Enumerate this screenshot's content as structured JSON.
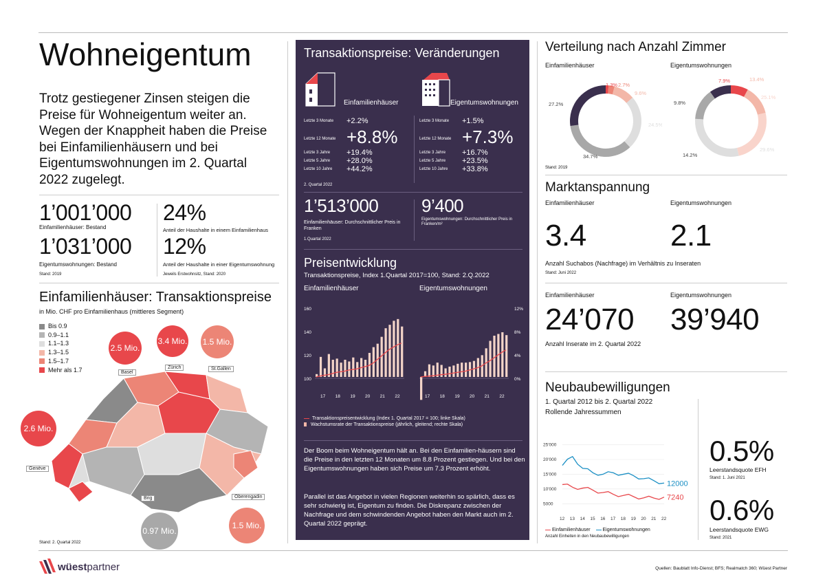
{
  "title": "Wohneigentum",
  "intro": "Trotz gestiegener Zinsen steigen die Preise für Wohneigentum weiter an. Wegen der Knappheit haben die Preise bei Einfamilienhäusern und bei Eigentumswohnungen im 2. Quartal 2022 zugelegt.",
  "stock": {
    "efh_value": "1’001’000",
    "efh_label": "Einfamilienhäuser: Bestand",
    "etw_value": "1’031’000",
    "etw_label": "Eigentumswohnungen: Bestand",
    "stand": "Stand: 2019",
    "efh_share": "24%",
    "efh_share_label": "Anteil der Haushalte in einem Einfamilienhaus",
    "etw_share": "12%",
    "etw_share_label": "Anteil der Haushalte in einer Eigentumswohnung",
    "share_stand": "Jeweils Erstwohnsitz, Stand: 2020"
  },
  "map": {
    "title": "Einfamilienhäuser: Transaktionspreise",
    "subtitle": "in Mio. CHF pro Einfamilienhaus (mittleres Segment)",
    "legend": [
      {
        "label": "Bis 0.9",
        "color": "#8a8a8a"
      },
      {
        "label": "0.9–1.1",
        "color": "#b4b4b4"
      },
      {
        "label": "1.1–1.3",
        "color": "#dedede"
      },
      {
        "label": "1.3–1.5",
        "color": "#f3b7a8"
      },
      {
        "label": "1.5–1.7",
        "color": "#ec8576"
      },
      {
        "label": "Mehr als 1.7",
        "color": "#e8474b"
      }
    ],
    "cities": [
      {
        "value": "2.5 Mio.",
        "name": "Basel"
      },
      {
        "value": "3.4 Mio.",
        "name": "Zürich"
      },
      {
        "value": "1.5 Mio.",
        "name": "St.Gallen"
      },
      {
        "value": "2.6 Mio.",
        "name": "Genève"
      },
      {
        "value": "0.97 Mio.",
        "name": "Brig"
      },
      {
        "value": "1.5 Mio.",
        "name": "Oberengadin"
      }
    ],
    "stand": "Stand: 2. Quartal 2022"
  },
  "transactions": {
    "title": "Transaktionspreise: Veränderungen",
    "efh": {
      "label": "Einfamilienhäuser",
      "rows": [
        {
          "period": "Letzte 3 Monate",
          "value": "+2.2%"
        },
        {
          "period": "Letzte 12 Monate",
          "value": "+8.8%"
        },
        {
          "period": "Letzte 3 Jahre",
          "value": "+19.4%"
        },
        {
          "period": "Letzte 5 Jahre",
          "value": "+28.0%"
        },
        {
          "period": "Letzte 10 Jahre",
          "value": "+44.2%"
        }
      ]
    },
    "etw": {
      "label": "Eigentumswohnungen",
      "rows": [
        {
          "period": "Letzte 3 Monate",
          "value": "+1.5%"
        },
        {
          "period": "Letzte 12 Monate",
          "value": "+7.3%"
        },
        {
          "period": "Letzte 3 Jahre",
          "value": "+16.7%"
        },
        {
          "period": "Letzte 5 Jahre",
          "value": "+23.5%"
        },
        {
          "period": "Letzte 10 Jahre",
          "value": "+33.8%"
        }
      ]
    },
    "stand": "2. Quartal 2022",
    "efh_price": "1’513’000",
    "efh_price_label": "Einfamilienhäuser: Durchschnittlicher Preis in Franken",
    "etw_price": "9’400",
    "etw_price_label": "Eigentumswohnungen: Durchschnittlicher Preis in Franken/m²",
    "price_stand": "1.Quartal 2022"
  },
  "price_dev": {
    "title": "Preisentwicklung",
    "subtitle": "Transaktionspreise, Index 1.Quartal 2017=100, Stand: 2.Q.2022",
    "efh_label": "Einfamilienhäuser",
    "etw_label": "Eigentumswohnungen",
    "legend_line": "Transaktionspreisentwicklung (Index 1. Quartal 2017 = 100; linke Skala)",
    "legend_bar": "Wachstumsrate der Transaktionspreise (jährlich, gleitend; rechte Skala)",
    "left_ticks": [
      "160",
      "140",
      "120",
      "100"
    ],
    "right_ticks": [
      "12%",
      "8%",
      "4%",
      "0%"
    ],
    "x_ticks": [
      "17",
      "18",
      "19",
      "20",
      "21",
      "22"
    ]
  },
  "text_block": {
    "p1": "Der Boom beim Wohneigentum hält an. Bei den Einfamilien-häusern sind die Preise in den letzten 12 Monaten um 8.8 Prozent gestiegen. Und bei den Eigentumswohnungen haben sich Preise um 7.3 Prozent erhöht.",
    "p2": "Parallel ist das Angebot in vielen Regionen weiterhin so spärlich, dass es sehr schwierig ist, Eigentum zu finden. Die Diskrepanz zwischen der Nachfrage und dem schwindenden Angebot haben den Markt auch im 2. Quartal 2022 geprägt."
  },
  "rooms": {
    "title": "Verteilung nach Anzahl Zimmer",
    "efh_label": "Einfamilienhäuser",
    "etw_label": "Eigentumswohnungen",
    "stand": "Stand: 2019"
  },
  "market": {
    "title": "Marktanspannung",
    "efh_label": "Einfamilienhäuser",
    "etw_label": "Eigentumswohnungen",
    "efh_value": "3.4",
    "etw_value": "2.1",
    "desc": "Anzahl Suchabos (Nachfrage) im Verhältnis zu Inseraten",
    "stand": "Stand: Juni 2022",
    "efh_label2": "Einfamilienhäuser",
    "etw_label2": "Eigentumswohnungen",
    "efh_listings": "24’070",
    "etw_listings": "39’940",
    "listings_desc": "Anzahl Inserate im 2. Quartal 2022"
  },
  "permits": {
    "title": "Neubaubewilligungen",
    "subtitle1": "1. Quartal 2012 bis 2. Quartal 2022",
    "subtitle2": "Rollende Jahressummen",
    "legend_efh": "Einfamilienhäuser",
    "legend_etw": "Eigentumswohnungen",
    "note": "Anzahl Einheiten in den Neubaubewilligungen",
    "end_etw": "12000",
    "end_efh": "7240",
    "y_ticks": [
      "25'000",
      "20'000",
      "15'000",
      "10'000",
      "5000"
    ],
    "x_ticks": [
      "12",
      "13",
      "14",
      "15",
      "16",
      "17",
      "18",
      "19",
      "20",
      "21",
      "22"
    ],
    "vac_efh": "0.5%",
    "vac_efh_label": "Leerstandsquote EFH",
    "vac_efh_stand": "Stand: 1. Juni 2021",
    "vac_etw": "0.6%",
    "vac_etw_label": "Leerstandsquote EWG",
    "vac_etw_stand": "Stand: 2021"
  },
  "footer": {
    "brand_a": "wüest",
    "brand_b": "partner",
    "sources": "Quellen: Baublatt Info-Dienst; BFS; Realmatch 360; Wüest Partner"
  },
  "colors": {
    "dark_panel": "#3a2f4d",
    "red": "#e8474b",
    "salmon": "#f3b7a8",
    "blue": "#1a8fc4"
  },
  "chart_data": [
    {
      "type": "pie",
      "name": "Verteilung nach Anzahl Zimmer – Einfamilienhäuser",
      "slices": [
        {
          "label": "1.3%",
          "value": 1.3,
          "color": "#e8474b"
        },
        {
          "label": "2.7%",
          "value": 2.7,
          "color": "#ec8576"
        },
        {
          "label": "9.6%",
          "value": 9.6,
          "color": "#f3b7a8"
        },
        {
          "label": "24.5%",
          "value": 24.5,
          "color": "#dedede"
        },
        {
          "label": "34.7%",
          "value": 34.7,
          "color": "#a8a8a8"
        },
        {
          "label": "27.2%",
          "value": 27.2,
          "color": "#3a2f4d"
        }
      ]
    },
    {
      "type": "pie",
      "name": "Verteilung nach Anzahl Zimmer – Eigentumswohnungen",
      "slices": [
        {
          "label": "7.9%",
          "value": 7.9,
          "color": "#e8474b"
        },
        {
          "label": "13.4%",
          "value": 13.4,
          "color": "#f3b7a8"
        },
        {
          "label": "25.1%",
          "value": 25.1,
          "color": "#f9d4cb"
        },
        {
          "label": "29.6%",
          "value": 29.6,
          "color": "#dedede"
        },
        {
          "label": "14.2%",
          "value": 14.2,
          "color": "#a8a8a8"
        },
        {
          "label": "9.8%",
          "value": 9.8,
          "color": "#3a2f4d"
        }
      ]
    },
    {
      "type": "bar",
      "name": "Preisentwicklung Einfamilienhäuser",
      "x": [
        "17",
        "",
        "",
        "",
        "18",
        "",
        "",
        "",
        "19",
        "",
        "",
        "",
        "20",
        "",
        "",
        "",
        "21",
        "",
        "",
        "",
        "22",
        ""
      ],
      "index": [
        100,
        100.8,
        101.5,
        102,
        103,
        104,
        104.5,
        105,
        106,
        106.5,
        107,
        108,
        109,
        110,
        112,
        115,
        118,
        121,
        124,
        126,
        128,
        129.5
      ],
      "growth": [
        0.5,
        3.5,
        1.5,
        4,
        3,
        3.2,
        2.5,
        3,
        2.7,
        3.4,
        2.6,
        3.3,
        3,
        4.2,
        5.2,
        5.8,
        7,
        8.5,
        9.1,
        9.8,
        10.1,
        8.8
      ],
      "ylim_left": [
        95,
        165
      ],
      "ylim_right": [
        0,
        12
      ]
    },
    {
      "type": "bar",
      "name": "Preisentwicklung Eigentumswohnungen",
      "x": [
        "17",
        "",
        "",
        "",
        "18",
        "",
        "",
        "",
        "19",
        "",
        "",
        "",
        "20",
        "",
        "",
        "",
        "21",
        "",
        "",
        "",
        "22",
        ""
      ],
      "index": [
        100,
        100.4,
        100.7,
        101,
        101.5,
        102,
        102.3,
        102.8,
        103.4,
        104,
        104.5,
        105,
        106,
        107,
        108,
        109.5,
        112,
        114,
        116.5,
        119,
        121.5,
        123.5
      ],
      "growth": [
        -4,
        1,
        2.2,
        2,
        2.5,
        2.1,
        1.5,
        1.8,
        2,
        2.3,
        2.5,
        2.5,
        2.6,
        2.8,
        3.3,
        3.8,
        5,
        6.3,
        7.2,
        7.5,
        7.8,
        7.3
      ],
      "ylim_left": [
        95,
        165
      ],
      "ylim_right": [
        -4,
        12
      ]
    },
    {
      "type": "line",
      "name": "Neubaubewilligungen",
      "x": [
        "12",
        "13",
        "14",
        "15",
        "16",
        "17",
        "18",
        "19",
        "20",
        "21",
        "22"
      ],
      "series": [
        {
          "name": "Einfamilienhäuser",
          "color": "#e8474b",
          "values": [
            11500,
            10600,
            10300,
            9600,
            8800,
            8200,
            7800,
            7400,
            7000,
            6900,
            7240
          ]
        },
        {
          "name": "Eigentumswohnungen",
          "color": "#1a8fc4",
          "values": [
            18000,
            21000,
            17000,
            15500,
            15000,
            15500,
            15000,
            14500,
            13500,
            12800,
            12000
          ]
        }
      ],
      "ylim": [
        2500,
        27000
      ]
    }
  ]
}
